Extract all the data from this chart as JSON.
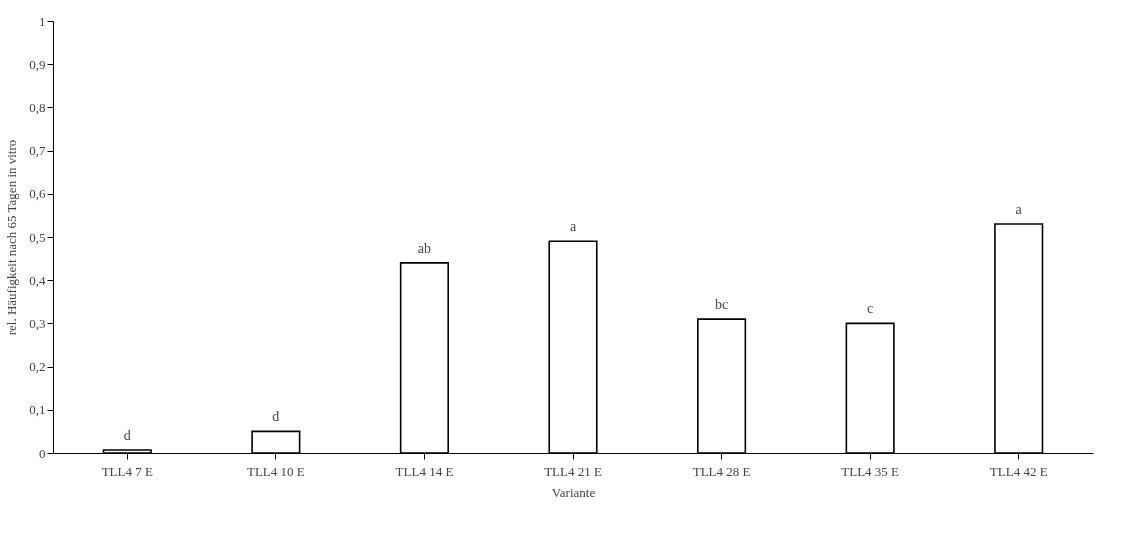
{
  "chart_data": {
    "type": "bar",
    "xlabel": "Variante",
    "ylabel": "rel. Häufigkeit nach 65 Tagen in vitro",
    "categories": [
      "TLL4 7 E",
      "TLL4 10 E",
      "TLL4 14 E",
      "TLL4 21 E",
      "TLL4 28 E",
      "TLL4 35 E",
      "TLL4 42 E"
    ],
    "values": [
      0.007,
      0.05,
      0.44,
      0.49,
      0.31,
      0.3,
      0.53
    ],
    "color": "#ffffff",
    "ylim": [
      0,
      1
    ],
    "yticks": [
      {
        "value": 0,
        "label": "0"
      },
      {
        "value": 0.1,
        "label": "0,1"
      },
      {
        "value": 0.2,
        "label": "0,2"
      },
      {
        "value": 0.3,
        "label": "0,3"
      },
      {
        "value": 0.4,
        "label": "0,4"
      },
      {
        "value": 0.5,
        "label": "0,5"
      },
      {
        "value": 0.6,
        "label": "0,6"
      },
      {
        "value": 0.7,
        "label": "0,7"
      },
      {
        "value": 0.8,
        "label": "0,8"
      },
      {
        "value": 0.9,
        "label": "0,9"
      },
      {
        "value": 1,
        "label": "1"
      }
    ],
    "grid": false,
    "annotations": [
      {
        "text": "d",
        "x": "TLL4 7 E",
        "y": 0.007
      },
      {
        "text": "d",
        "x": "TLL4 10 E",
        "y": 0.05
      },
      {
        "text": "ab",
        "x": "TLL4 14 E",
        "y": 0.44
      },
      {
        "text": "a",
        "x": "TLL4 21 E",
        "y": 0.49
      },
      {
        "text": "bc",
        "x": "TLL4 28 E",
        "y": 0.31
      },
      {
        "text": "c",
        "x": "TLL4 35 E",
        "y": 0.3
      },
      {
        "text": "a",
        "x": "TLL4 42 E",
        "y": 0.53
      }
    ]
  }
}
